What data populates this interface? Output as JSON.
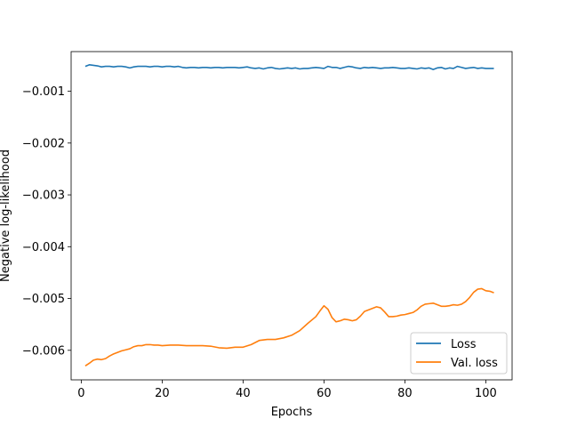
{
  "chart_data": {
    "type": "line",
    "xlabel": "Epochs",
    "ylabel": "Negative log-likelihood",
    "xlim": [
      -2.5,
      106.5
    ],
    "ylim": [
      -0.00657,
      -0.000235
    ],
    "x_ticks": [
      0,
      20,
      40,
      60,
      80,
      100
    ],
    "x_tick_labels": [
      "0",
      "20",
      "40",
      "60",
      "80",
      "100"
    ],
    "y_ticks": [
      -0.001,
      -0.002,
      -0.003,
      -0.004,
      -0.005,
      -0.006
    ],
    "y_tick_labels": [
      "−0.001",
      "−0.002",
      "−0.003",
      "−0.004",
      "−0.005",
      "−0.006"
    ],
    "grid": false,
    "legend_position": "bottom-right",
    "series": [
      {
        "name": "Loss",
        "color": "#1f77b4",
        "x": [
          1,
          2,
          3,
          4,
          5,
          6,
          7,
          8,
          9,
          10,
          11,
          12,
          13,
          14,
          15,
          16,
          17,
          18,
          19,
          20,
          21,
          22,
          23,
          24,
          25,
          26,
          27,
          28,
          29,
          30,
          31,
          32,
          33,
          34,
          35,
          36,
          37,
          38,
          39,
          40,
          41,
          42,
          43,
          44,
          45,
          46,
          47,
          48,
          49,
          50,
          51,
          52,
          53,
          54,
          55,
          56,
          57,
          58,
          59,
          60,
          61,
          62,
          63,
          64,
          65,
          66,
          67,
          68,
          69,
          70,
          71,
          72,
          73,
          74,
          75,
          76,
          77,
          78,
          79,
          80,
          81,
          82,
          83,
          84,
          85,
          86,
          87,
          88,
          89,
          90,
          91,
          92,
          93,
          94,
          95,
          96,
          97,
          98,
          99,
          100,
          101,
          102
        ],
        "y": [
          -0.00052,
          -0.00049,
          -0.0005,
          -0.00051,
          -0.00053,
          -0.00052,
          -0.00052,
          -0.00053,
          -0.00052,
          -0.00052,
          -0.00053,
          -0.00055,
          -0.00053,
          -0.00052,
          -0.00052,
          -0.00052,
          -0.00053,
          -0.00052,
          -0.00052,
          -0.00053,
          -0.00052,
          -0.00052,
          -0.00053,
          -0.00052,
          -0.00054,
          -0.00055,
          -0.00054,
          -0.00054,
          -0.00055,
          -0.00054,
          -0.00054,
          -0.00055,
          -0.00054,
          -0.00054,
          -0.00055,
          -0.00054,
          -0.00054,
          -0.00054,
          -0.00055,
          -0.00054,
          -0.00053,
          -0.00055,
          -0.00056,
          -0.00055,
          -0.00057,
          -0.00055,
          -0.00054,
          -0.00056,
          -0.00057,
          -0.00056,
          -0.00055,
          -0.00056,
          -0.00055,
          -0.00057,
          -0.00056,
          -0.00056,
          -0.00055,
          -0.00054,
          -0.00055,
          -0.00056,
          -0.00052,
          -0.00054,
          -0.00054,
          -0.00056,
          -0.00054,
          -0.00052,
          -0.00053,
          -0.00055,
          -0.00056,
          -0.00054,
          -0.00055,
          -0.00054,
          -0.00055,
          -0.00056,
          -0.00055,
          -0.00055,
          -0.00054,
          -0.00055,
          -0.00056,
          -0.00056,
          -0.00055,
          -0.00056,
          -0.00057,
          -0.00055,
          -0.00056,
          -0.00055,
          -0.00058,
          -0.00055,
          -0.00054,
          -0.00057,
          -0.00055,
          -0.00056,
          -0.00052,
          -0.00054,
          -0.00056,
          -0.00055,
          -0.00054,
          -0.00056,
          -0.00055,
          -0.00056,
          -0.00056,
          -0.00056
        ]
      },
      {
        "name": "Val. loss",
        "color": "#ff7f0e",
        "x": [
          1,
          2,
          3,
          4,
          5,
          6,
          7,
          8,
          9,
          10,
          11,
          12,
          13,
          14,
          15,
          16,
          17,
          18,
          19,
          20,
          22,
          24,
          26,
          28,
          30,
          32,
          34,
          36,
          38,
          40,
          42,
          44,
          46,
          48,
          50,
          52,
          54,
          56,
          58,
          59,
          60,
          61,
          62,
          63,
          64,
          65,
          66,
          67,
          68,
          69,
          70,
          71,
          72,
          73,
          74,
          75,
          76,
          77,
          78,
          79,
          80,
          81,
          82,
          83,
          84,
          85,
          86,
          87,
          88,
          89,
          90,
          91,
          92,
          93,
          94,
          95,
          96,
          97,
          98,
          99,
          100,
          101,
          102
        ],
        "y": [
          -0.0063,
          -0.00625,
          -0.00619,
          -0.00617,
          -0.00618,
          -0.00616,
          -0.00611,
          -0.00607,
          -0.00604,
          -0.00601,
          -0.00599,
          -0.00597,
          -0.00593,
          -0.00591,
          -0.00591,
          -0.00589,
          -0.00589,
          -0.0059,
          -0.0059,
          -0.00591,
          -0.0059,
          -0.0059,
          -0.00591,
          -0.00591,
          -0.00591,
          -0.00592,
          -0.00595,
          -0.00596,
          -0.00594,
          -0.00594,
          -0.00589,
          -0.00581,
          -0.00579,
          -0.00579,
          -0.00576,
          -0.00571,
          -0.00562,
          -0.00548,
          -0.00535,
          -0.00524,
          -0.00514,
          -0.00521,
          -0.00537,
          -0.00545,
          -0.00543,
          -0.0054,
          -0.00541,
          -0.00543,
          -0.00541,
          -0.00534,
          -0.00525,
          -0.00522,
          -0.00519,
          -0.00516,
          -0.00518,
          -0.00526,
          -0.00535,
          -0.00535,
          -0.00534,
          -0.00532,
          -0.00531,
          -0.00529,
          -0.00527,
          -0.00522,
          -0.00515,
          -0.00511,
          -0.0051,
          -0.00509,
          -0.00512,
          -0.00515,
          -0.00515,
          -0.00514,
          -0.00512,
          -0.00513,
          -0.00511,
          -0.00506,
          -0.00498,
          -0.00488,
          -0.00482,
          -0.00481,
          -0.00485,
          -0.00486,
          -0.00489
        ]
      }
    ]
  }
}
